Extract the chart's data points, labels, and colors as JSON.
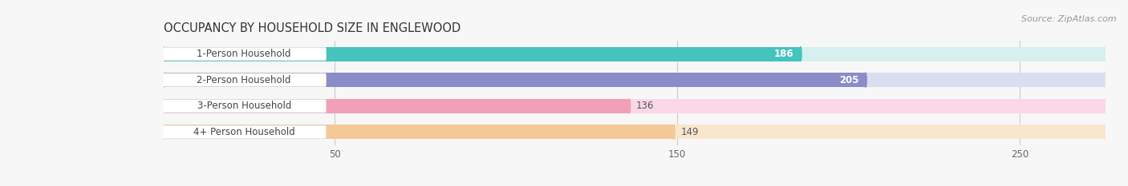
{
  "title": "OCCUPANCY BY HOUSEHOLD SIZE IN ENGLEWOOD",
  "source": "Source: ZipAtlas.com",
  "categories": [
    "1-Person Household",
    "2-Person Household",
    "3-Person Household",
    "4+ Person Household"
  ],
  "values": [
    186,
    205,
    136,
    149
  ],
  "bar_colors": [
    "#45C4BE",
    "#8B8DC8",
    "#F2A0B8",
    "#F5C898"
  ],
  "bar_bg_colors": [
    "#D5F0EE",
    "#DDDDF2",
    "#FAD8E6",
    "#FAE6CC"
  ],
  "value_label_inside": [
    true,
    true,
    false,
    false
  ],
  "value_label_colors_inside": [
    "#ffffff",
    "#ffffff",
    "#666666",
    "#666666"
  ],
  "xlim_data": [
    0,
    250
  ],
  "xlim_display": [
    0,
    275
  ],
  "xticks": [
    50,
    150,
    250
  ],
  "title_fontsize": 10.5,
  "source_fontsize": 8,
  "bar_label_fontsize": 8.5,
  "value_fontsize": 8.5,
  "figsize": [
    14.06,
    2.33
  ],
  "dpi": 100
}
